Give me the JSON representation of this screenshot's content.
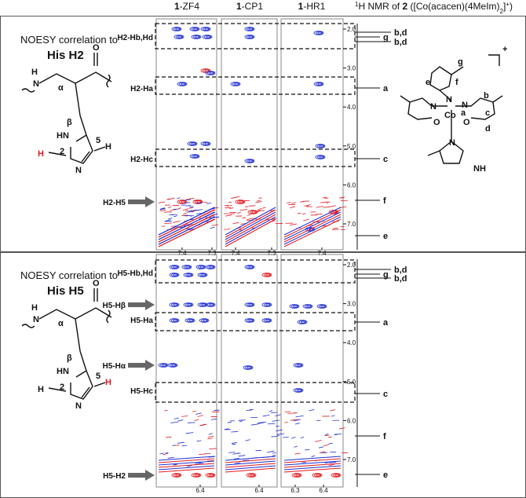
{
  "columns": [
    {
      "num": "1",
      "name": "-ZF4"
    },
    {
      "num": "1",
      "name": "-CP1"
    },
    {
      "num": "1",
      "name": "-HR1"
    }
  ],
  "nmr_title": [
    {
      "text": "1",
      "style": "sup"
    },
    {
      "text": "H NMR of "
    },
    {
      "text": "2",
      "style": "bold"
    },
    {
      "text": " ([Co(acacen)(4MeIm)"
    },
    {
      "text": "2",
      "style": "sub"
    },
    {
      "text": "]"
    },
    {
      "text": "+",
      "style": "sup"
    },
    {
      "text": ")"
    }
  ],
  "panels": [
    {
      "caption": [
        "NOESY correlation to",
        "His H2"
      ],
      "rows": [
        "H2-Hb,Hd",
        "H2-Ha",
        "H2-Hc",
        "H2-H5"
      ],
      "y_ticks": [
        "2.0",
        "3.0",
        "4.0",
        "5.0",
        "6.0",
        "7.0"
      ],
      "x_ticks": [
        [
          "7.4",
          "7.3"
        ],
        [
          "7.4",
          "7.3"
        ],
        [
          "7.4"
        ]
      ],
      "peaks": [
        "b,d",
        "g",
        "b,d",
        "a",
        "c",
        "f",
        "e"
      ],
      "structure": [
        "O",
        "H",
        "N",
        "α",
        "β",
        "HN",
        "5",
        "H",
        "2",
        "H",
        "N"
      ]
    },
    {
      "caption": [
        "NOESY correlation to",
        "His H5"
      ],
      "rows": [
        "H5-Hb,Hd",
        "H5-Hβ",
        "H5-Ha",
        "H5-Hα",
        "H5-Hc",
        "H5-H2"
      ],
      "y_ticks": [
        "2.0",
        "3.0",
        "4.0",
        "5.0",
        "6.0",
        "7.0"
      ],
      "x_ticks": [
        [
          "6.4"
        ],
        [
          "6.4"
        ],
        [
          "6.3",
          "6.4"
        ]
      ],
      "peaks": [
        "b,d",
        "g",
        "b,d",
        "a",
        "c",
        "f",
        "e"
      ],
      "structure": [
        "O",
        "H",
        "N",
        "α",
        "β",
        "HN",
        "5",
        "H",
        "2",
        "H",
        "N"
      ]
    }
  ],
  "complex": [
    "g",
    "+",
    "e",
    "f",
    "N",
    "a",
    "N",
    "N",
    "b",
    "Co",
    "c",
    "O",
    "O",
    "d",
    "N",
    "NH"
  ]
}
